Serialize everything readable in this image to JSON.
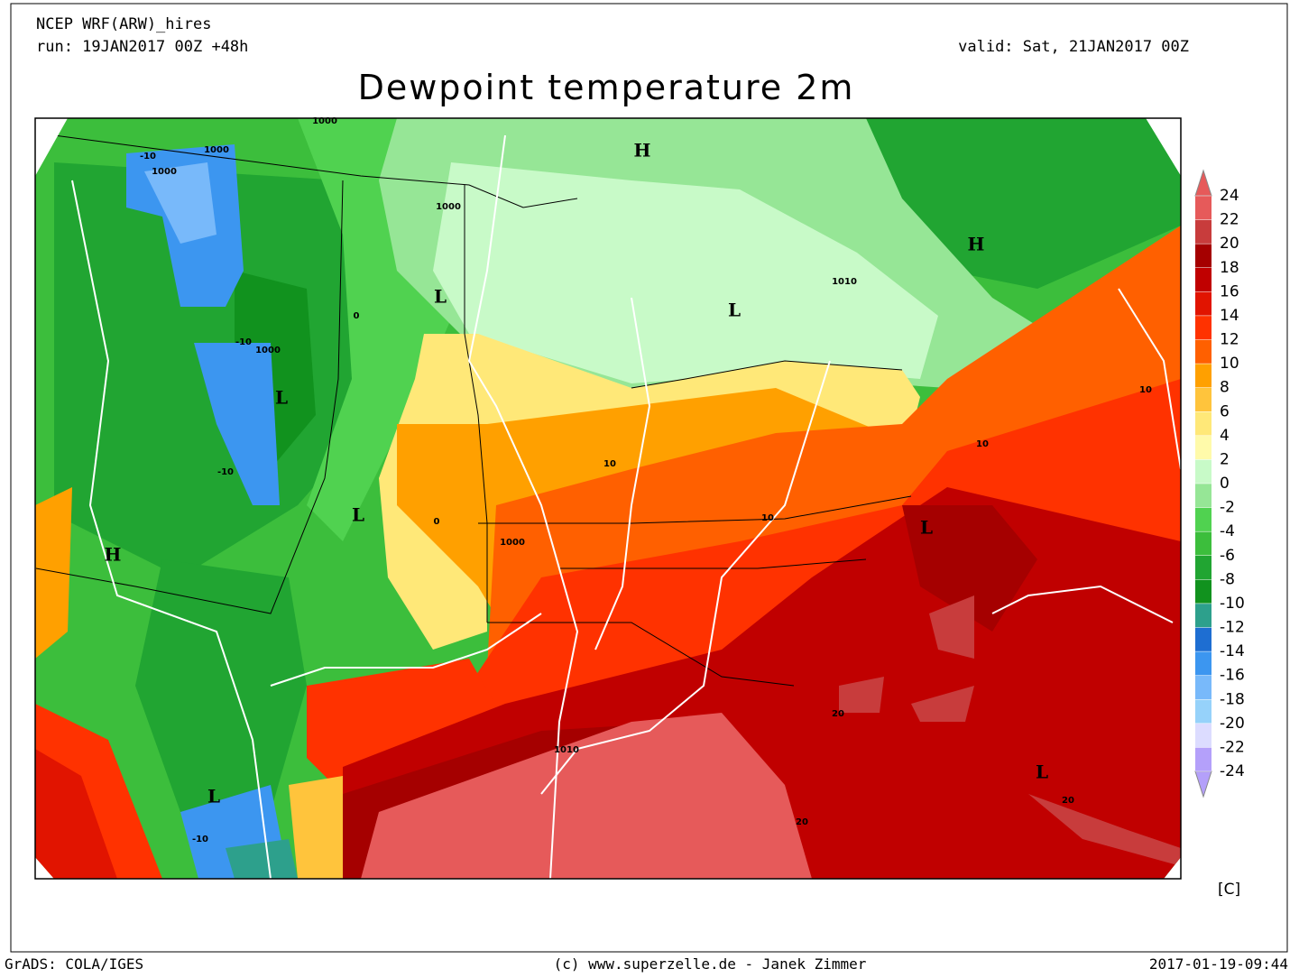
{
  "header": {
    "model": "NCEP WRF(ARW)_hires",
    "run": "run: 19JAN2017 00Z +48h",
    "valid": "valid: Sat, 21JAN2017 00Z",
    "title": "Dewpoint temperature 2m"
  },
  "map": {
    "pressure_centers": [
      "H",
      "H",
      "L",
      "L",
      "L",
      "L",
      "H",
      "L",
      "L",
      "L"
    ],
    "contour_labels": [
      "1000",
      "1000",
      "1000",
      "1000",
      "1000",
      "1010",
      "1010",
      "1000",
      "-10",
      "-10",
      "-10",
      "0",
      "0",
      "10",
      "10",
      "10",
      "10",
      "20",
      "20",
      "20",
      "-10"
    ]
  },
  "colorbar": {
    "levels": [
      24,
      22,
      20,
      18,
      16,
      14,
      12,
      10,
      8,
      6,
      4,
      2,
      0,
      -2,
      -4,
      -6,
      -8,
      -10,
      -12,
      -14,
      -16,
      -18,
      -20,
      -22,
      -24
    ],
    "colors": [
      "#e65a5a",
      "#c83c3c",
      "#a50000",
      "#c00000",
      "#e11400",
      "#ff3200",
      "#ff6000",
      "#ffa000",
      "#ffc43c",
      "#ffe878",
      "#fffaaa",
      "#c8fac8",
      "#96e696",
      "#50d250",
      "#3cbe3c",
      "#21a532",
      "#11921e",
      "#2da08c",
      "#1e6ed2",
      "#3c96f0",
      "#78b9fa",
      "#96d2fa",
      "#dcdcff",
      "#b4a0fa"
    ],
    "unit": "[C]"
  },
  "footer": {
    "left": "GrADS: COLA/IGES",
    "center": "(c) www.superzelle.de - Janek Zimmer",
    "right": "2017-01-19-09:44"
  }
}
